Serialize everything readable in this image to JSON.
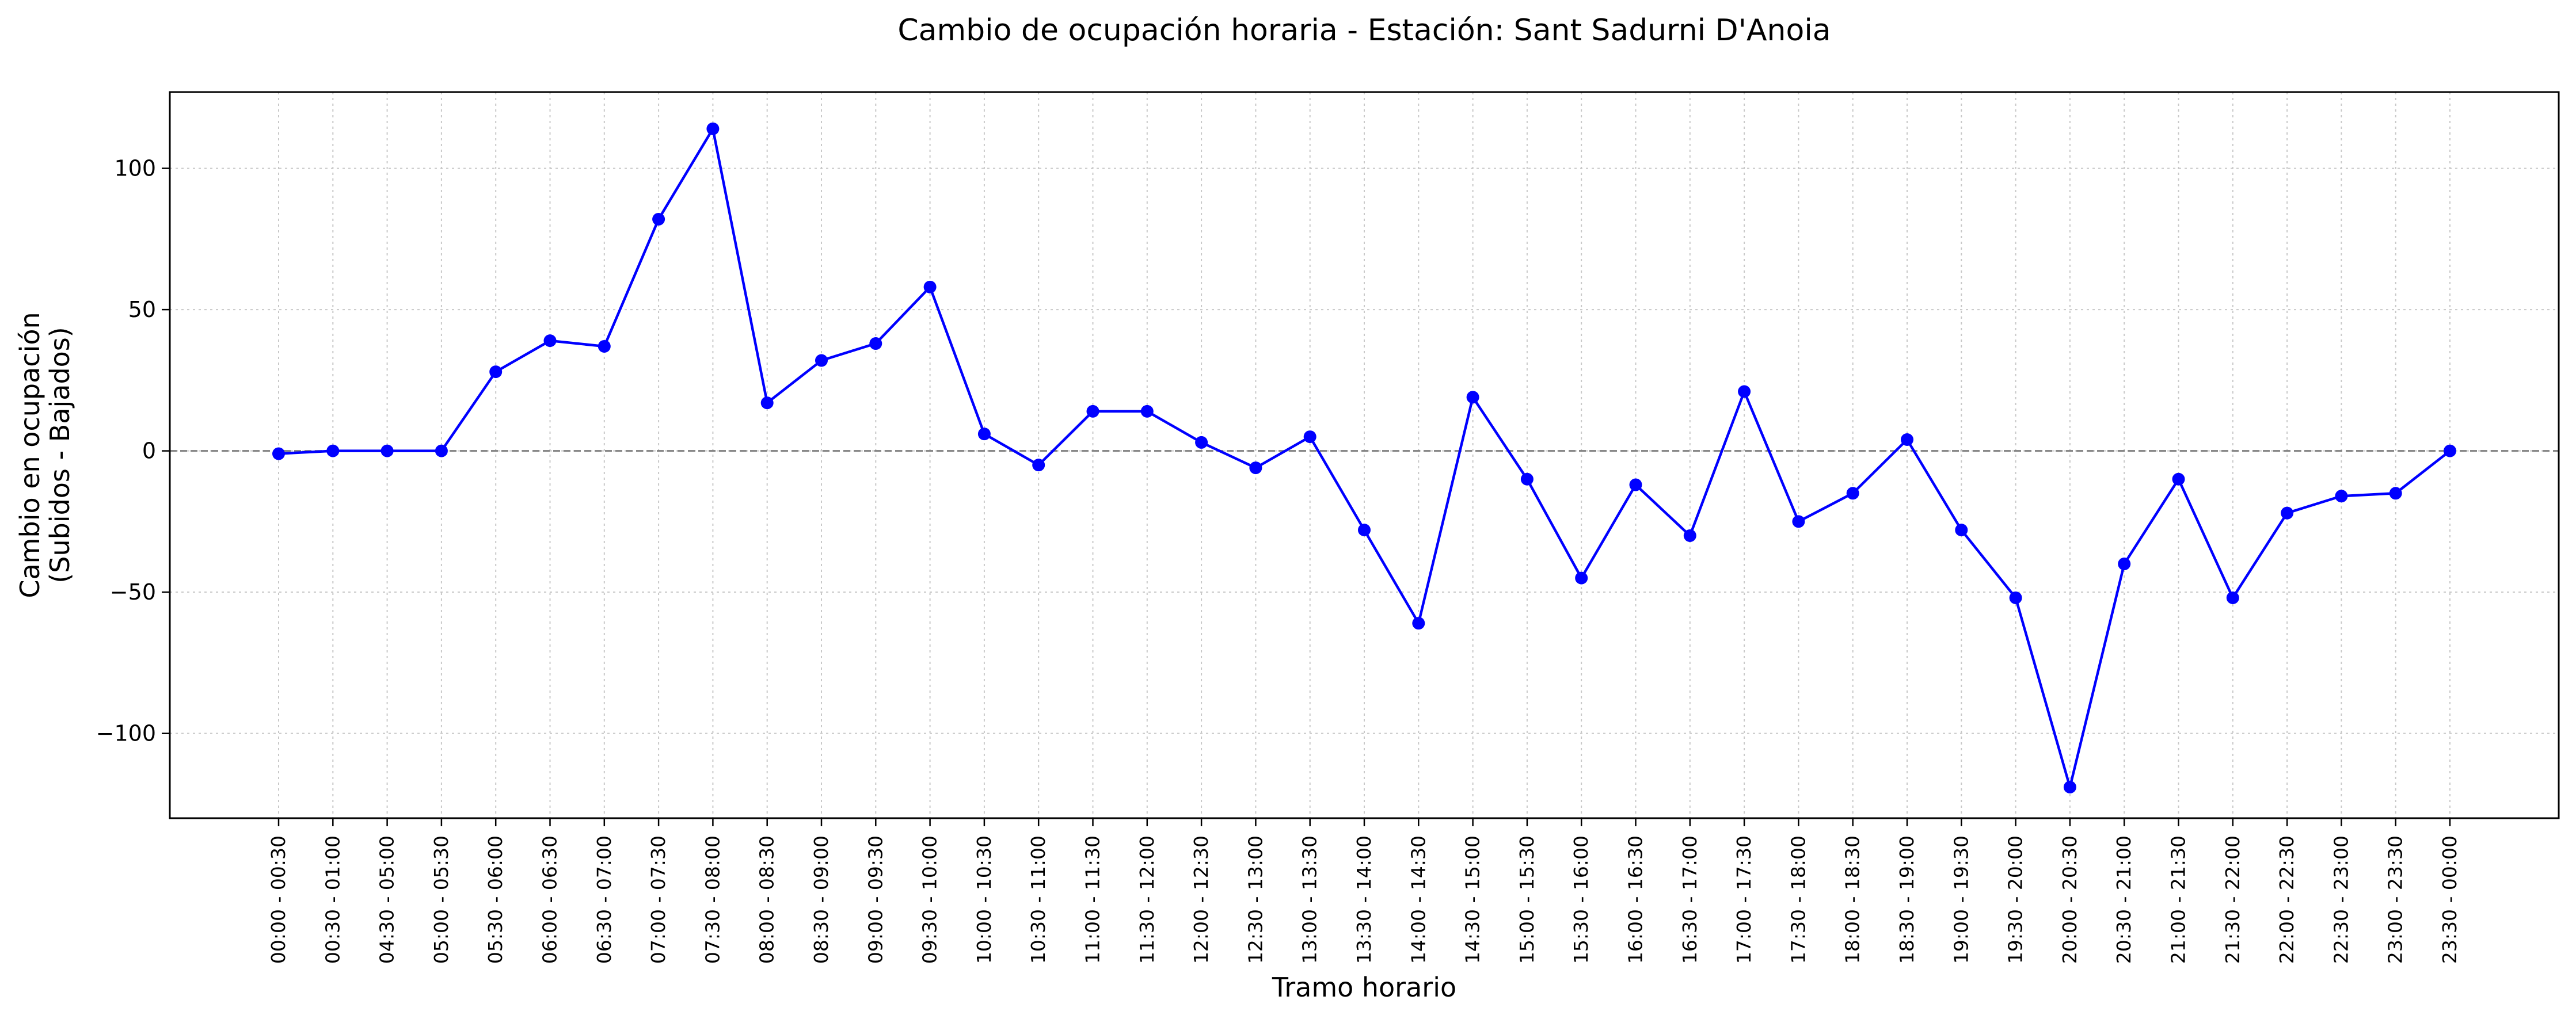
{
  "chart_data": {
    "type": "line",
    "title": "Cambio de ocupación horaria - Estación: Sant Sadurni D'Anoia",
    "xlabel": "Tramo horario",
    "ylabel_line1": "Cambio en ocupación",
    "ylabel_line2": "(Subidos - Bajados)",
    "ylim": [
      -130,
      127
    ],
    "yticks": [
      -100,
      -50,
      0,
      50,
      100
    ],
    "ytick_labels": [
      "−100",
      "−50",
      "0",
      "50",
      "100"
    ],
    "grid": true,
    "zero_line": true,
    "categories": [
      "00:00 - 00:30",
      "00:30 - 01:00",
      "04:30 - 05:00",
      "05:00 - 05:30",
      "05:30 - 06:00",
      "06:00 - 06:30",
      "06:30 - 07:00",
      "07:00 - 07:30",
      "07:30 - 08:00",
      "08:00 - 08:30",
      "08:30 - 09:00",
      "09:00 - 09:30",
      "09:30 - 10:00",
      "10:00 - 10:30",
      "10:30 - 11:00",
      "11:00 - 11:30",
      "11:30 - 12:00",
      "12:00 - 12:30",
      "12:30 - 13:00",
      "13:00 - 13:30",
      "13:30 - 14:00",
      "14:00 - 14:30",
      "14:30 - 15:00",
      "15:00 - 15:30",
      "15:30 - 16:00",
      "16:00 - 16:30",
      "16:30 - 17:00",
      "17:00 - 17:30",
      "17:30 - 18:00",
      "18:00 - 18:30",
      "18:30 - 19:00",
      "19:00 - 19:30",
      "19:30 - 20:00",
      "20:00 - 20:30",
      "20:30 - 21:00",
      "21:00 - 21:30",
      "21:30 - 22:00",
      "22:00 - 22:30",
      "22:30 - 23:00",
      "23:00 - 23:30",
      "23:30 - 00:00"
    ],
    "series": [
      {
        "values": [
          -1,
          0,
          0,
          0,
          28,
          39,
          37,
          82,
          114,
          17,
          32,
          38,
          58,
          6,
          -5,
          14,
          14,
          3,
          -6,
          5,
          -28,
          -61,
          19,
          -10,
          -45,
          -12,
          -30,
          21,
          -25,
          -15,
          4,
          -28,
          -52,
          -119,
          -40,
          -10,
          -52,
          -22,
          -16,
          -15,
          0
        ],
        "color": "#0000ff"
      }
    ]
  }
}
